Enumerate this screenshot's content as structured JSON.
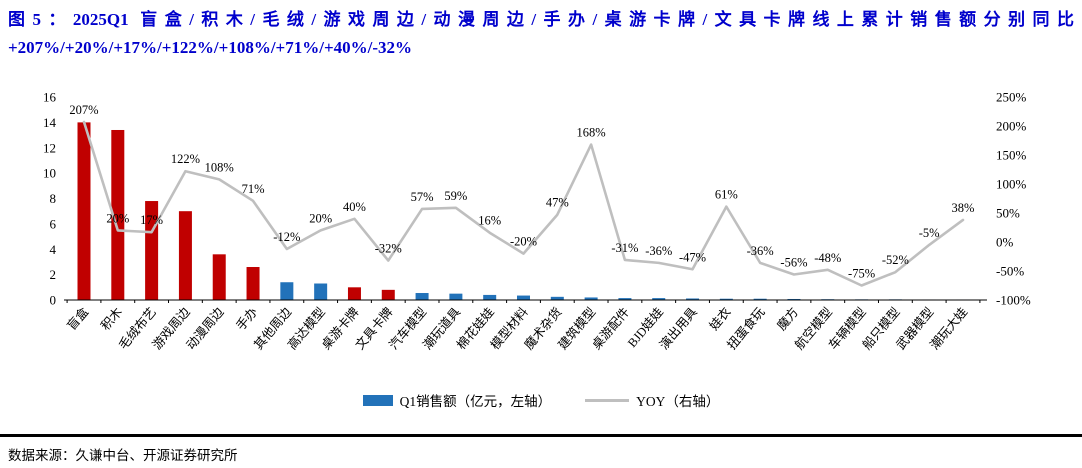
{
  "header": {
    "title_line1": "图5：2025Q1 盲盒/积木/毛绒/游戏周边/动漫周边/手办/桌游卡牌/文具卡牌线上累计销售额分别同比",
    "title_line2": "+207%/+20%/+17%/+122%/+108%/+71%/+40%/-32%",
    "title_color": "#0000CC"
  },
  "chart_data": {
    "type": "bar",
    "subtype": "bar+line combo",
    "categories": [
      "盲盒",
      "积木",
      "毛绒布艺",
      "游戏周边",
      "动漫周边",
      "手办",
      "其他周边",
      "高达模型",
      "桌游卡牌",
      "文具卡牌",
      "汽车模型",
      "潮玩道具",
      "棉花娃娃",
      "模型材料",
      "魔术杂货",
      "建筑模型",
      "桌游配件",
      "BJD娃娃",
      "演出用具",
      "娃衣",
      "扭蛋食玩",
      "魔方",
      "航空模型",
      "车辆模型",
      "船只模型",
      "武器模型",
      "潮玩大娃"
    ],
    "series": [
      {
        "name": "Q1销售额（亿元，左轴）",
        "type": "bar",
        "axis": "left",
        "values": [
          14.0,
          13.4,
          7.8,
          7.0,
          3.6,
          2.6,
          1.4,
          1.3,
          1.0,
          0.8,
          0.55,
          0.5,
          0.4,
          0.35,
          0.25,
          0.2,
          0.15,
          0.15,
          0.12,
          0.1,
          0.1,
          0.08,
          0.06,
          0.05,
          0.05,
          0.04,
          0.04
        ]
      },
      {
        "name": "YOY（右轴）",
        "type": "line",
        "axis": "right",
        "values": [
          207,
          20,
          17,
          122,
          108,
          71,
          -12,
          20,
          40,
          -32,
          57,
          59,
          16,
          -20,
          47,
          168,
          -31,
          -36,
          -47,
          61,
          -36,
          -56,
          -48,
          -75,
          -52,
          -5,
          38
        ]
      }
    ],
    "left_axis": {
      "min": 0,
      "max": 16,
      "step": 2
    },
    "right_axis": {
      "min": -100,
      "max": 250,
      "step": 50,
      "suffix": "%"
    },
    "colors": {
      "red": "#C00000",
      "blue": "#2272B9",
      "line": "#BFBFBF"
    },
    "red_indices": [
      0,
      1,
      2,
      3,
      4,
      5,
      8,
      9
    ],
    "grid": false,
    "legend_position": "bottom",
    "point_labels_suffix": "%"
  },
  "legend": {
    "bar_label": "Q1销售额（亿元，左轴）",
    "line_label": "YOY（右轴）"
  },
  "footer": {
    "source": "数据来源：久谦中台、开源证券研究所"
  }
}
